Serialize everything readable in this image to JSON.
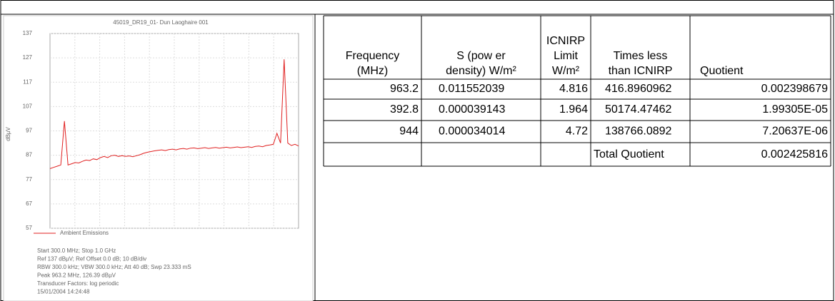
{
  "spectrum": {
    "type": "line",
    "title": "45019_DR19_01- Dun Laoghaire 001",
    "y_label": "dBµV",
    "ylim": [
      57,
      137
    ],
    "yticks": [
      57,
      67,
      77,
      87,
      97,
      107,
      117,
      127,
      137
    ],
    "grid": true,
    "series": [
      {
        "name": "Ambient Emissions",
        "color": "#e02020",
        "values": [
          81.5,
          82,
          82.5,
          83,
          101,
          83,
          83.5,
          84,
          83.8,
          84.5,
          85,
          84.8,
          85.5,
          85.2,
          86,
          86.5,
          86,
          86.8,
          87,
          86.5,
          86.8,
          86.5,
          86.7,
          86.4,
          86.8,
          87.2,
          87.8,
          88.2,
          88.5,
          88.8,
          89,
          89.2,
          88.9,
          89.3,
          89.5,
          89.2,
          89.6,
          89.8,
          89.5,
          89.9,
          90,
          89.7,
          89.9,
          90.1,
          89.8,
          90,
          90.2,
          89.9,
          90.1,
          90.3,
          90,
          90.2,
          90.4,
          90.1,
          90.3,
          90.5,
          90.2,
          90.6,
          90.8,
          90.5,
          91,
          91.2,
          91.5,
          96,
          92,
          126.4,
          92,
          91,
          91.5,
          90.8
        ]
      }
    ],
    "notes": [
      "Start 300.0 MHz; Stop 1.0 GHz",
      "Ref 137 dBµV; Ref Offset 0.0 dB; 10 dB/div",
      "RBW 300.0 kHz; VBW 300.0 kHz; Att 40 dB; Swp 23.333 mS",
      "Peak 963.2 MHz, 126.39 dBµV",
      "Transducer Factors: log periodic",
      "15/01/2004 14:24:48"
    ]
  },
  "table": {
    "header": [
      [
        "Frequency",
        "(MHz)"
      ],
      [
        "S (pow er",
        "density) W/m²"
      ],
      [
        "ICNIRP",
        "Limit",
        "W/m²"
      ],
      [
        "Times less",
        "than ICNIRP"
      ],
      [
        "Quotient"
      ]
    ],
    "rows": [
      [
        "963.2",
        "0.011552039",
        "4.816",
        "416.8960962",
        "0.002398679"
      ],
      [
        "392.8",
        "0.000039143",
        "1.964",
        "50174.47462",
        "1.99305E-05"
      ],
      [
        "944",
        "0.000034014",
        "4.72",
        "138766.0892",
        "7.20637E-06"
      ]
    ],
    "total": {
      "label": "Total Quotient",
      "value": "0.002425816"
    }
  }
}
